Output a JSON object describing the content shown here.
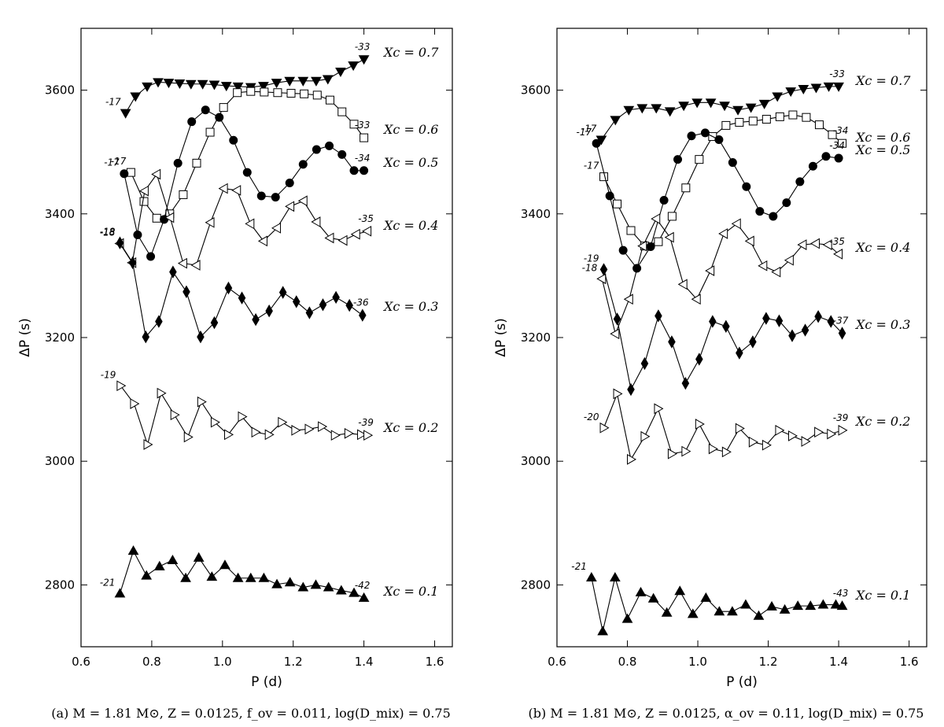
{
  "chart_data": [
    {
      "type": "line",
      "panel": "(a)",
      "caption": "(a) M = 1.81 M⊙, Z = 0.0125, f_ov = 0.011, log(D_mix) = 0.75",
      "xlabel": "P (d)",
      "ylabel": "ΔP (s)",
      "xlim": [
        0.6,
        1.65
      ],
      "ylim": [
        2700,
        3700
      ],
      "xticks": [
        "0.6",
        "0.8",
        "1.0",
        "1.2",
        "1.4",
        "1.6"
      ],
      "yticks": [
        "2800",
        "3000",
        "3200",
        "3400",
        "3600"
      ],
      "series": [
        {
          "name": "X_c = 0.7",
          "label": "Xc = 0.7",
          "marker": "tri-down-filled",
          "start_label": "-17",
          "end_label": "-33",
          "x": [
            0.726,
            0.754,
            0.787,
            0.818,
            0.848,
            0.879,
            0.911,
            0.944,
            0.977,
            1.011,
            1.044,
            1.08,
            1.116,
            1.153,
            1.19,
            1.228,
            1.265,
            1.298,
            1.334,
            1.37,
            1.4
          ],
          "y": [
            3563,
            3590,
            3606,
            3613,
            3612,
            3611,
            3610,
            3610,
            3609,
            3607,
            3606,
            3605,
            3607,
            3612,
            3615,
            3615,
            3615,
            3618,
            3630,
            3640,
            3650
          ]
        },
        {
          "name": "X_c = 0.6",
          "label": "Xc = 0.6",
          "marker": "square-open",
          "start_label": "-17",
          "end_label": "-33",
          "x": [
            0.741,
            0.778,
            0.814,
            0.851,
            0.889,
            0.927,
            0.965,
            1.003,
            1.042,
            1.08,
            1.118,
            1.156,
            1.194,
            1.231,
            1.268,
            1.304,
            1.338,
            1.372,
            1.4
          ],
          "y": [
            3467,
            3420,
            3393,
            3400,
            3431,
            3482,
            3532,
            3572,
            3596,
            3598,
            3597,
            3596,
            3595,
            3594,
            3592,
            3584,
            3565,
            3545,
            3523
          ]
        },
        {
          "name": "X_c = 0.5",
          "label": "Xc = 0.5",
          "marker": "circle-filled",
          "start_label": "-17",
          "end_label": "-34",
          "x": [
            0.722,
            0.76,
            0.797,
            0.835,
            0.874,
            0.913,
            0.952,
            0.991,
            1.031,
            1.07,
            1.11,
            1.15,
            1.19,
            1.228,
            1.266,
            1.302,
            1.338,
            1.372,
            1.4
          ],
          "y": [
            3465,
            3366,
            3331,
            3391,
            3482,
            3549,
            3568,
            3556,
            3519,
            3467,
            3429,
            3427,
            3450,
            3480,
            3504,
            3510,
            3496,
            3470,
            3470
          ]
        },
        {
          "name": "X_c = 0.4",
          "label": "Xc = 0.4",
          "marker": "tri-left-open",
          "start_label": "-18",
          "end_label": "-35",
          "x": [
            0.71,
            0.745,
            0.78,
            0.814,
            0.852,
            0.889,
            0.926,
            0.966,
            1.004,
            1.041,
            1.079,
            1.116,
            1.154,
            1.192,
            1.229,
            1.266,
            1.304,
            1.342,
            1.378,
            1.41
          ],
          "y": [
            3352,
            3321,
            3437,
            3464,
            3394,
            3320,
            3317,
            3386,
            3441,
            3438,
            3384,
            3356,
            3377,
            3412,
            3421,
            3387,
            3361,
            3357,
            3367,
            3372
          ]
        },
        {
          "name": "X_c = 0.3",
          "label": "Xc = 0.3",
          "marker": "diamond-filled",
          "start_label": "-18",
          "end_label": "-36",
          "x": [
            0.71,
            0.746,
            0.783,
            0.82,
            0.86,
            0.898,
            0.938,
            0.977,
            1.017,
            1.055,
            1.094,
            1.132,
            1.171,
            1.209,
            1.246,
            1.284,
            1.321,
            1.359,
            1.396
          ],
          "y": [
            3353,
            3321,
            3201,
            3226,
            3306,
            3274,
            3201,
            3224,
            3280,
            3264,
            3229,
            3243,
            3273,
            3258,
            3240,
            3253,
            3265,
            3252,
            3236
          ]
        },
        {
          "name": "X_c = 0.2",
          "label": "Xc = 0.2",
          "marker": "tri-right-open",
          "start_label": "-19",
          "end_label": "-39",
          "x": [
            0.712,
            0.75,
            0.788,
            0.826,
            0.864,
            0.902,
            0.94,
            0.978,
            1.016,
            1.055,
            1.093,
            1.131,
            1.168,
            1.206,
            1.244,
            1.281,
            1.318,
            1.356,
            1.392,
            1.41
          ],
          "y": [
            3122,
            3093,
            3027,
            3110,
            3075,
            3039,
            3096,
            3063,
            3043,
            3072,
            3047,
            3043,
            3063,
            3050,
            3052,
            3056,
            3042,
            3045,
            3043,
            3042
          ]
        },
        {
          "name": "X_c = 0.1",
          "label": "Xc = 0.1",
          "marker": "tri-up-filled",
          "start_label": "-21",
          "end_label": "-42",
          "x": [
            0.71,
            0.748,
            0.785,
            0.822,
            0.859,
            0.896,
            0.933,
            0.97,
            1.007,
            1.044,
            1.08,
            1.117,
            1.154,
            1.191,
            1.228,
            1.264,
            1.3,
            1.336,
            1.372,
            1.4
          ],
          "y": [
            2786,
            2855,
            2815,
            2830,
            2840,
            2811,
            2844,
            2813,
            2832,
            2811,
            2811,
            2811,
            2801,
            2804,
            2796,
            2800,
            2796,
            2791,
            2787,
            2779
          ]
        }
      ]
    },
    {
      "type": "line",
      "panel": "(b)",
      "caption": "(b) M = 1.81 M⊙, Z = 0.0125, α_ov = 0.11, log(D_mix) = 0.75",
      "xlabel": "P (d)",
      "ylabel": "ΔP (s)",
      "xlim": [
        0.6,
        1.65
      ],
      "ylim": [
        2700,
        3700
      ],
      "xticks": [
        "0.6",
        "0.8",
        "1.0",
        "1.2",
        "1.4",
        "1.6"
      ],
      "yticks": [
        "2800",
        "3000",
        "3200",
        "3400",
        "3600"
      ],
      "series": [
        {
          "name": "X_c = 0.7",
          "label": "Xc = 0.7",
          "marker": "tri-down-filled",
          "start_label": "-17",
          "end_label": "-33",
          "x": [
            0.726,
            0.766,
            0.804,
            0.842,
            0.882,
            0.921,
            0.96,
            0.998,
            1.037,
            1.076,
            1.114,
            1.151,
            1.189,
            1.226,
            1.264,
            1.3,
            1.336,
            1.372,
            1.4
          ],
          "y": [
            3520,
            3552,
            3568,
            3571,
            3571,
            3566,
            3575,
            3580,
            3580,
            3575,
            3568,
            3572,
            3578,
            3590,
            3598,
            3602,
            3604,
            3606,
            3606
          ]
        },
        {
          "name": "X_c = 0.6",
          "label": "Xc = 0.6",
          "marker": "square-open",
          "start_label": "-17",
          "end_label": "-34",
          "x": [
            0.733,
            0.771,
            0.81,
            0.849,
            0.888,
            0.927,
            0.966,
            1.004,
            1.042,
            1.08,
            1.118,
            1.157,
            1.195,
            1.233,
            1.27,
            1.308,
            1.345,
            1.382,
            1.41
          ],
          "y": [
            3460,
            3416,
            3373,
            3348,
            3355,
            3396,
            3442,
            3488,
            3525,
            3543,
            3548,
            3550,
            3553,
            3557,
            3560,
            3556,
            3544,
            3528,
            3514
          ]
        },
        {
          "name": "X_c = 0.5",
          "label": "Xc = 0.5",
          "marker": "circle-filled",
          "start_label": "-17",
          "end_label": "-34",
          "x": [
            0.712,
            0.75,
            0.788,
            0.827,
            0.866,
            0.904,
            0.943,
            0.982,
            1.021,
            1.06,
            1.099,
            1.138,
            1.176,
            1.214,
            1.252,
            1.29,
            1.327,
            1.364,
            1.4
          ],
          "y": [
            3514,
            3429,
            3341,
            3312,
            3347,
            3422,
            3488,
            3526,
            3531,
            3520,
            3483,
            3444,
            3404,
            3396,
            3418,
            3452,
            3477,
            3493,
            3490
          ]
        },
        {
          "name": "X_c = 0.4",
          "label": "Xc = 0.4",
          "marker": "tri-left-open",
          "start_label": "-18",
          "end_label": "-35",
          "x": [
            0.728,
            0.766,
            0.805,
            0.844,
            0.882,
            0.921,
            0.959,
            0.997,
            1.036,
            1.074,
            1.111,
            1.149,
            1.186,
            1.224,
            1.261,
            1.298,
            1.335,
            1.37,
            1.4
          ],
          "y": [
            3295,
            3206,
            3262,
            3348,
            3392,
            3362,
            3286,
            3262,
            3308,
            3368,
            3384,
            3356,
            3316,
            3306,
            3325,
            3350,
            3352,
            3350,
            3335
          ]
        },
        {
          "name": "X_c = 0.3",
          "label": "Xc = 0.3",
          "marker": "diamond-filled",
          "start_label": "-19",
          "end_label": "-37",
          "x": [
            0.733,
            0.771,
            0.81,
            0.849,
            0.888,
            0.926,
            0.965,
            1.004,
            1.042,
            1.08,
            1.118,
            1.156,
            1.194,
            1.231,
            1.268,
            1.305,
            1.342,
            1.378,
            1.41
          ],
          "y": [
            3310,
            3230,
            3116,
            3158,
            3235,
            3193,
            3126,
            3165,
            3226,
            3218,
            3175,
            3193,
            3231,
            3227,
            3203,
            3212,
            3234,
            3226,
            3207
          ]
        },
        {
          "name": "X_c = 0.2",
          "label": "Xc = 0.2",
          "marker": "tri-right-open",
          "start_label": "-20",
          "end_label": "-39",
          "x": [
            0.733,
            0.771,
            0.81,
            0.849,
            0.887,
            0.926,
            0.965,
            1.004,
            1.042,
            1.08,
            1.118,
            1.156,
            1.194,
            1.231,
            1.268,
            1.305,
            1.342,
            1.378,
            1.41
          ],
          "y": [
            3054,
            3109,
            3003,
            3040,
            3085,
            3012,
            3016,
            3060,
            3020,
            3015,
            3053,
            3031,
            3026,
            3050,
            3041,
            3032,
            3047,
            3044,
            3050
          ]
        },
        {
          "name": "X_c = 0.1",
          "label": "Xc = 0.1",
          "marker": "tri-up-filled",
          "start_label": "-21",
          "end_label": "-43",
          "x": [
            0.698,
            0.73,
            0.765,
            0.8,
            0.838,
            0.874,
            0.912,
            0.949,
            0.986,
            1.023,
            1.061,
            1.098,
            1.136,
            1.173,
            1.21,
            1.247,
            1.284,
            1.32,
            1.356,
            1.392,
            1.41
          ],
          "y": [
            2812,
            2725,
            2812,
            2745,
            2788,
            2778,
            2755,
            2790,
            2753,
            2779,
            2757,
            2757,
            2768,
            2750,
            2765,
            2760,
            2766,
            2766,
            2768,
            2768,
            2766
          ]
        }
      ]
    }
  ]
}
